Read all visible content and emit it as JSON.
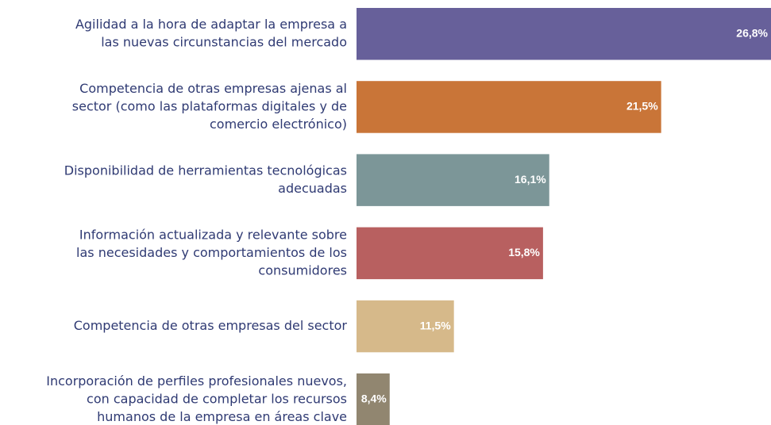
{
  "chart_data": {
    "type": "barh",
    "categories": [
      [
        "Agilidad a la hora de adaptar la empresa a",
        "las nuevas circunstancias del mercado"
      ],
      [
        "Competencia de otras empresas ajenas al",
        "sector (como las plataformas digitales y de",
        "comercio electrónico)"
      ],
      [
        "Disponibilidad de herramientas tecnológicas",
        "adecuadas"
      ],
      [
        "Información actualizada y relevante sobre",
        "las necesidades y comportamientos de los",
        "consumidores"
      ],
      [
        "Competencia de otras empresas del sector"
      ],
      [
        "Incorporación de perfiles profesionales nuevos,",
        "con capacidad de completar los recursos",
        "humanos de la empresa en áreas clave"
      ]
    ],
    "values": [
      26.8,
      21.5,
      16.1,
      15.8,
      11.5,
      8.4
    ],
    "value_labels": [
      "26,8%",
      "21,5%",
      "16,1%",
      "15,8%",
      "11,5%",
      "8,4%"
    ],
    "colors": [
      "#67609a",
      "#c97538",
      "#7c9698",
      "#b86060",
      "#d6b98a",
      "#918670"
    ],
    "xlim": [
      6.8,
      26.8
    ]
  }
}
